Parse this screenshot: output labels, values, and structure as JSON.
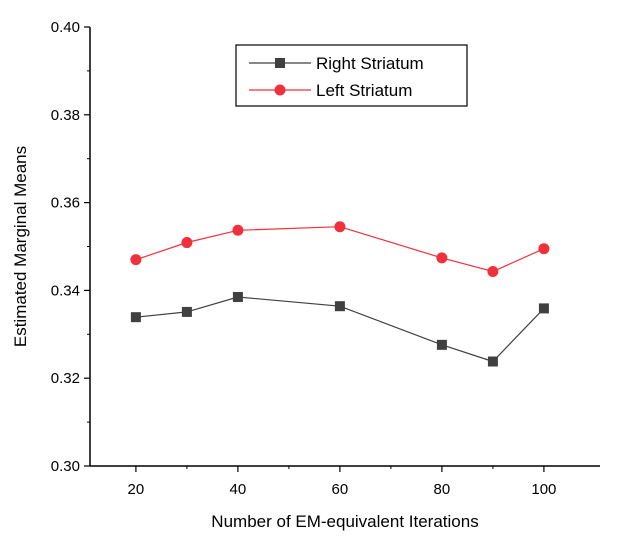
{
  "chart_data": {
    "type": "line",
    "xlabel": "Number of EM-equivalent Iterations",
    "ylabel": "Estimated Marginal Means",
    "x": [
      20,
      30,
      40,
      60,
      80,
      90,
      100
    ],
    "xlim": [
      11,
      111
    ],
    "ylim": [
      0.3,
      0.4
    ],
    "xticks": [
      20,
      40,
      60,
      80,
      100
    ],
    "yticks": [
      0.3,
      0.32,
      0.34,
      0.36,
      0.38,
      0.4
    ],
    "ytick_labels": [
      "0.30",
      "0.32",
      "0.34",
      "0.36",
      "0.38",
      "0.40"
    ],
    "grid": false,
    "legend_position": "top-center",
    "series": [
      {
        "name": "Right Striatum",
        "color": "#404040",
        "marker": "square",
        "values": [
          0.3339,
          0.3351,
          0.3385,
          0.3364,
          0.3276,
          0.3238,
          0.3359
        ]
      },
      {
        "name": "Left Striatum",
        "color": "#f0303a",
        "marker": "circle",
        "values": [
          0.347,
          0.3509,
          0.3537,
          0.3545,
          0.3474,
          0.3443,
          0.3495
        ]
      }
    ]
  }
}
